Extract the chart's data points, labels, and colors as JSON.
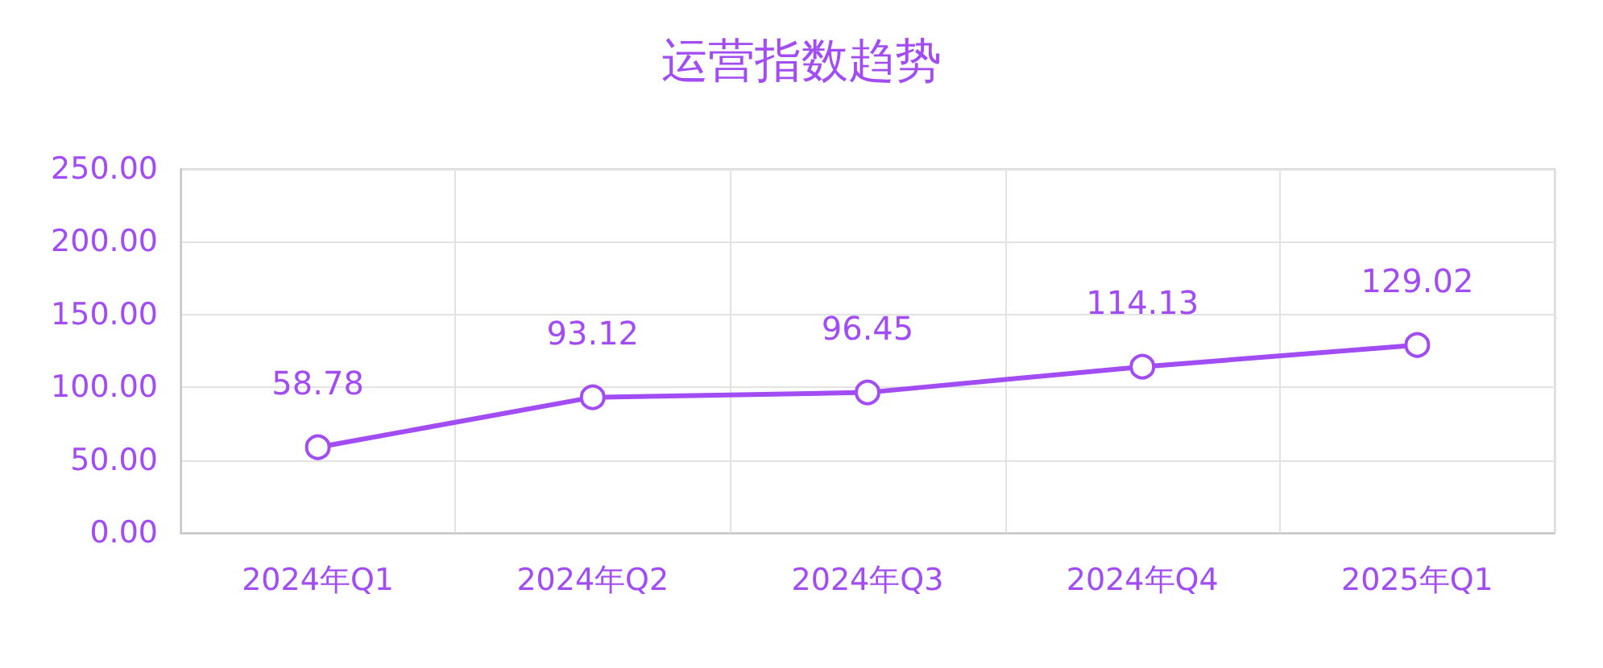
{
  "chart_data": {
    "type": "line",
    "title": "运营指数趋势",
    "categories": [
      "2024年Q1",
      "2024年Q2",
      "2024年Q3",
      "2024年Q4",
      "2025年Q1"
    ],
    "series": [
      {
        "color": "#a24cf4",
        "values": [
          58.78,
          93.12,
          96.45,
          114.13,
          129.02
        ]
      }
    ],
    "ylim": [
      0,
      250
    ],
    "yticks": [
      {
        "value": 0,
        "label": "0.00"
      },
      {
        "value": 50,
        "label": "50.00"
      },
      {
        "value": 100,
        "label": "100.00"
      },
      {
        "value": 150,
        "label": "150.00"
      },
      {
        "value": 200,
        "label": "200.00"
      },
      {
        "value": 250,
        "label": "250.00"
      }
    ],
    "grid": true,
    "data_labels": true,
    "marker": "circle",
    "line_style": "solid"
  }
}
